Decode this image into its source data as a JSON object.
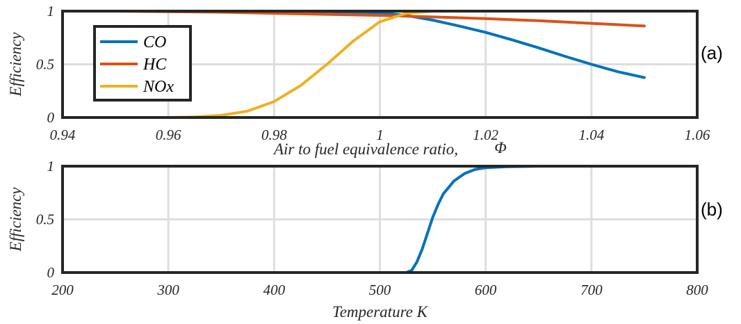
{
  "chart_data": [
    {
      "type": "line",
      "panel_label": "(a)",
      "xlabel": "Air to fuel equivalence ratio,",
      "xlabel_symbol": "Φ",
      "ylabel": "Efficiency",
      "xlim": [
        0.94,
        1.06
      ],
      "ylim": [
        0,
        1
      ],
      "xticks": [
        "0.94",
        "0.96",
        "0.98",
        "1",
        "1.02",
        "1.04",
        "1.06"
      ],
      "yticks": [
        "0",
        "0.5",
        "1"
      ],
      "grid": true,
      "legend_position": "upper-left",
      "series": [
        {
          "name": "CO",
          "color": "#0072BD",
          "x": [
            0.95,
            0.96,
            0.97,
            0.98,
            0.99,
            1.0,
            1.005,
            1.01,
            1.015,
            1.02,
            1.025,
            1.03,
            1.035,
            1.04,
            1.045,
            1.05
          ],
          "y": [
            1.0,
            1.0,
            1.0,
            1.0,
            0.995,
            0.985,
            0.96,
            0.915,
            0.86,
            0.8,
            0.73,
            0.655,
            0.575,
            0.5,
            0.43,
            0.375
          ]
        },
        {
          "name": "HC",
          "color": "#D95319",
          "x": [
            0.95,
            0.96,
            0.97,
            0.98,
            0.99,
            1.0,
            1.01,
            1.02,
            1.03,
            1.04,
            1.05
          ],
          "y": [
            1.0,
            0.995,
            0.99,
            0.98,
            0.97,
            0.96,
            0.945,
            0.93,
            0.91,
            0.885,
            0.86
          ]
        },
        {
          "name": "NOx",
          "color": "#EDB120",
          "x": [
            0.95,
            0.96,
            0.965,
            0.97,
            0.975,
            0.98,
            0.985,
            0.99,
            0.995,
            1.0,
            1.005,
            1.01,
            1.02,
            1.03,
            1.04,
            1.05
          ],
          "y": [
            0.0,
            0.0,
            0.005,
            0.02,
            0.06,
            0.15,
            0.3,
            0.5,
            0.72,
            0.9,
            0.98,
            1.0,
            1.0,
            1.0,
            1.0,
            1.0
          ]
        }
      ]
    },
    {
      "type": "line",
      "panel_label": "(b)",
      "xlabel": "Temperature K",
      "ylabel": "Efficiency",
      "xlim": [
        200,
        800
      ],
      "ylim": [
        0,
        1
      ],
      "xticks": [
        "200",
        "300",
        "400",
        "500",
        "600",
        "700",
        "800"
      ],
      "yticks": [
        "0",
        "0.5",
        "1"
      ],
      "grid": true,
      "series": [
        {
          "name": "",
          "color": "#0072BD",
          "x": [
            273,
            400,
            500,
            525,
            530,
            535,
            540,
            545,
            550,
            555,
            560,
            570,
            580,
            590,
            600,
            620,
            650,
            700,
            800
          ],
          "y": [
            0,
            0,
            0,
            0,
            0.02,
            0.1,
            0.22,
            0.37,
            0.52,
            0.64,
            0.74,
            0.86,
            0.93,
            0.97,
            0.985,
            0.995,
            1.0,
            1.0,
            1.0
          ]
        }
      ]
    }
  ]
}
